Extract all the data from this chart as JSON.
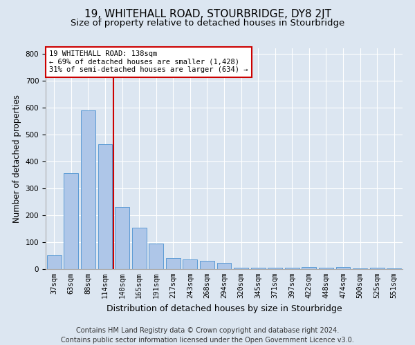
{
  "title1": "19, WHITEHALL ROAD, STOURBRIDGE, DY8 2JT",
  "title2": "Size of property relative to detached houses in Stourbridge",
  "xlabel": "Distribution of detached houses by size in Stourbridge",
  "ylabel": "Number of detached properties",
  "footer": "Contains HM Land Registry data © Crown copyright and database right 2024.\nContains public sector information licensed under the Open Government Licence v3.0.",
  "categories": [
    "37sqm",
    "63sqm",
    "88sqm",
    "114sqm",
    "140sqm",
    "165sqm",
    "191sqm",
    "217sqm",
    "243sqm",
    "268sqm",
    "294sqm",
    "320sqm",
    "345sqm",
    "371sqm",
    "397sqm",
    "422sqm",
    "448sqm",
    "474sqm",
    "500sqm",
    "525sqm",
    "551sqm"
  ],
  "values": [
    52,
    355,
    590,
    465,
    230,
    155,
    95,
    40,
    35,
    30,
    22,
    5,
    5,
    5,
    5,
    8,
    5,
    8,
    3,
    5,
    3
  ],
  "bar_color": "#aec6e8",
  "bar_edge_color": "#5b9bd5",
  "vline_x": 3.5,
  "vline_color": "#cc0000",
  "annotation_box_text": "19 WHITEHALL ROAD: 138sqm\n← 69% of detached houses are smaller (1,428)\n31% of semi-detached houses are larger (634) →",
  "annotation_box_edge_color": "#cc0000",
  "ylim": [
    0,
    820
  ],
  "yticks": [
    0,
    100,
    200,
    300,
    400,
    500,
    600,
    700,
    800
  ],
  "background_color": "#dce6f1",
  "plot_background_color": "#dce6f1",
  "grid_color": "#ffffff",
  "title1_fontsize": 11,
  "title2_fontsize": 9.5,
  "xlabel_fontsize": 9,
  "ylabel_fontsize": 8.5,
  "tick_fontsize": 7.5,
  "footer_fontsize": 7
}
